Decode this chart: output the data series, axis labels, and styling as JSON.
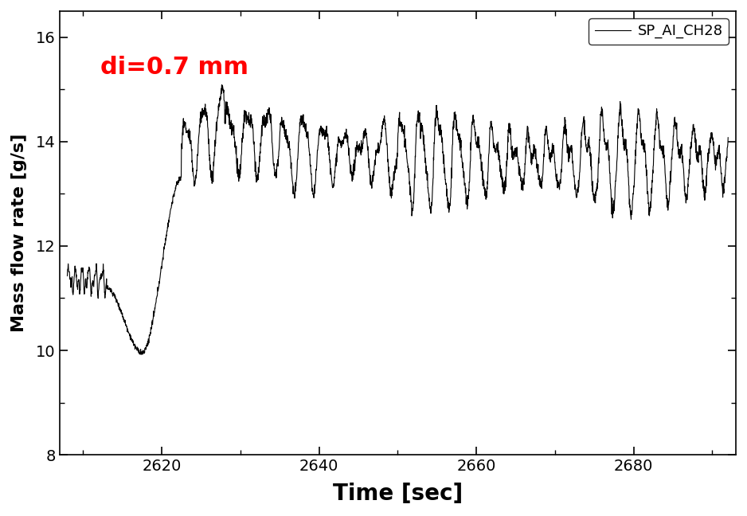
{
  "xlabel": "Time [sec]",
  "ylabel": "Mass flow rate [g/s]",
  "annotation_text": "di=0.7 mm",
  "annotation_color": "#ff0000",
  "legend_label": "SP_AI_CH28",
  "xlim": [
    2607,
    2693
  ],
  "ylim": [
    8,
    16.5
  ],
  "yticks": [
    8,
    10,
    12,
    14,
    16
  ],
  "xticks": [
    2620,
    2640,
    2660,
    2680
  ],
  "line_color": "#000000",
  "line_width": 0.8,
  "bg_color": "#ffffff",
  "x_start": 2608.0,
  "x_end": 2692.0,
  "num_points": 3000
}
